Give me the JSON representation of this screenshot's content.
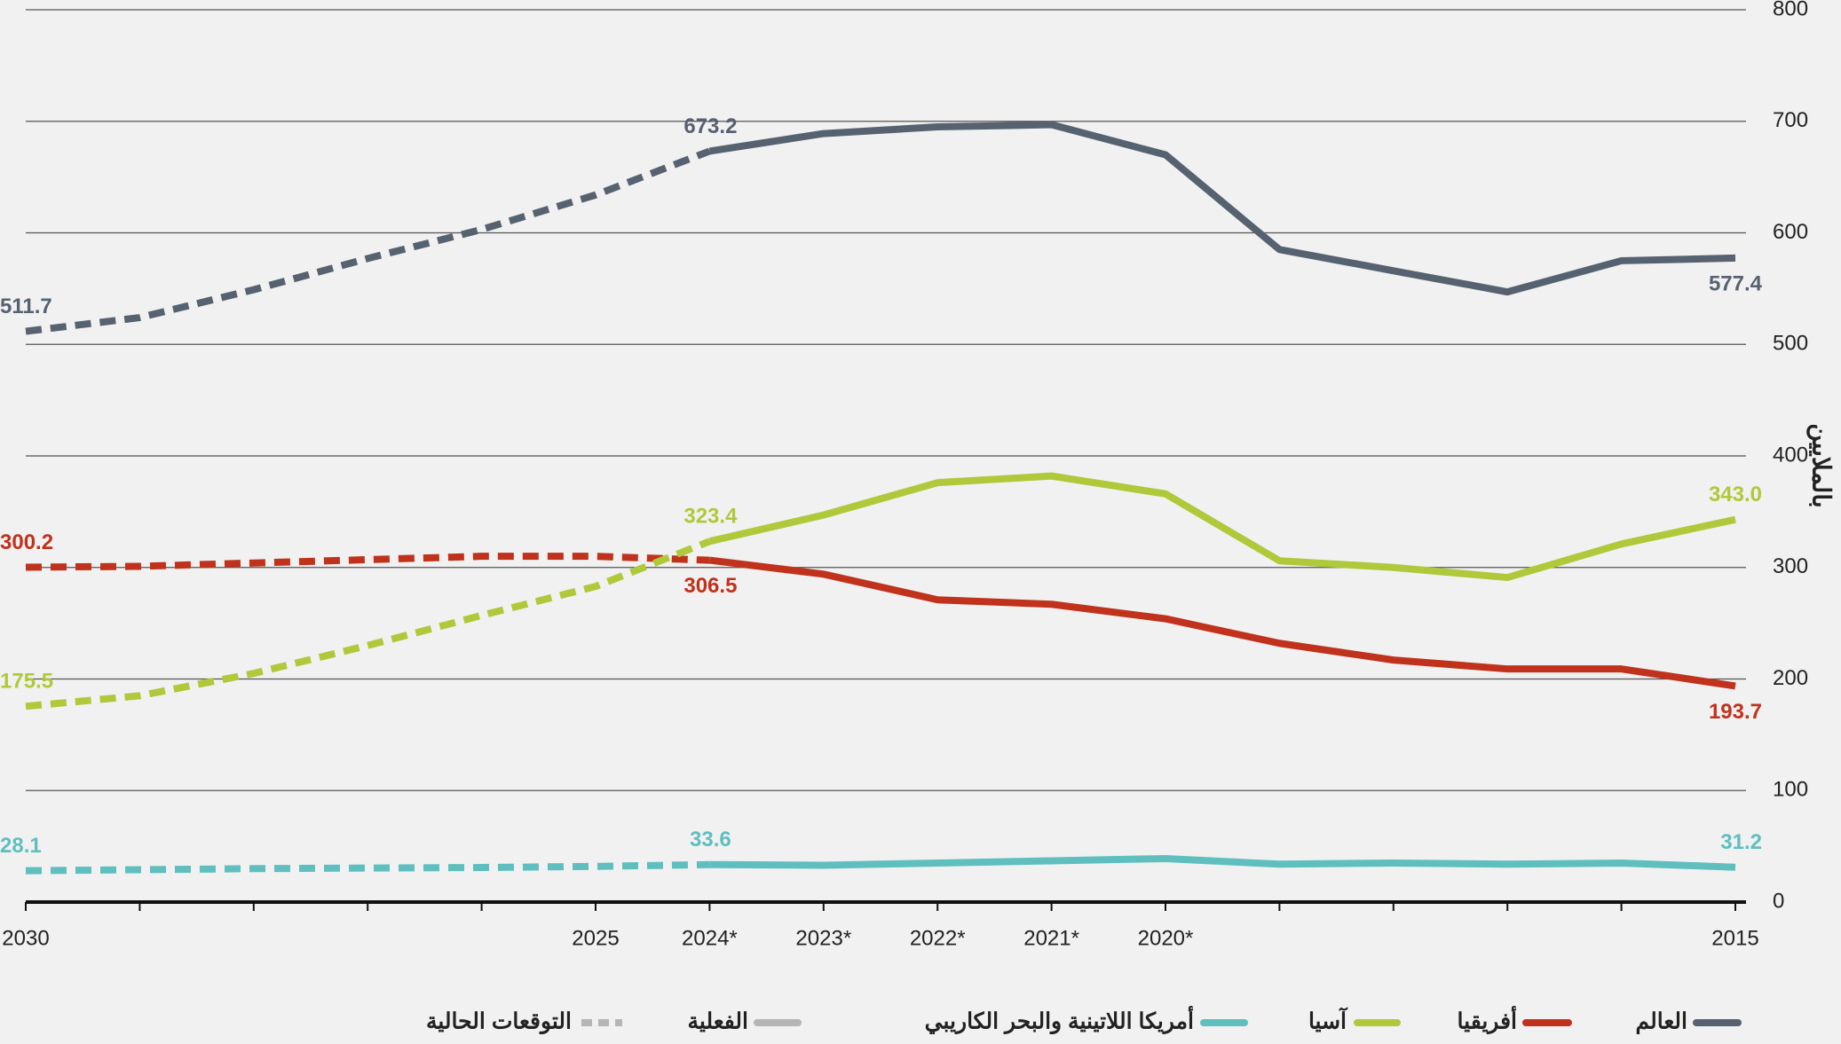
{
  "chart_data": {
    "type": "line",
    "y_label": "بالملايين",
    "categories": [
      "2030",
      null,
      null,
      null,
      null,
      "2025",
      "2024*",
      "2023*",
      "2022*",
      "2021*",
      "2020*",
      null,
      null,
      null,
      null,
      "2015"
    ],
    "projected": [
      true,
      true,
      true,
      true,
      true,
      true,
      true,
      false,
      false,
      false,
      false,
      false,
      false,
      false,
      false,
      false
    ],
    "series": [
      {
        "name": "العالم",
        "color": "#566270",
        "values": [
          511.7,
          524,
          549,
          577,
          603,
          634,
          673.2,
          689,
          695,
          697,
          670,
          585,
          566,
          547,
          575,
          577.4
        ],
        "value_labels": [
          "511.7",
          null,
          null,
          null,
          null,
          null,
          "673.2",
          null,
          null,
          null,
          null,
          null,
          null,
          null,
          null,
          "577.4"
        ]
      },
      {
        "name": "أفريقيا",
        "color": "#c0321c",
        "values": [
          300.2,
          301,
          304,
          307,
          310,
          310,
          306.5,
          294,
          271,
          267,
          254,
          232,
          217,
          209,
          209,
          193.7
        ],
        "value_labels": [
          "300.2",
          null,
          null,
          null,
          null,
          null,
          "306.5",
          null,
          null,
          null,
          null,
          null,
          null,
          null,
          null,
          "193.7"
        ]
      },
      {
        "name": "آسيا",
        "color": "#afc93a",
        "values": [
          175.5,
          185,
          205,
          230,
          257,
          283,
          323.4,
          347,
          376,
          382,
          366,
          306,
          300,
          291,
          321,
          343.0
        ],
        "value_labels": [
          "175.5",
          null,
          null,
          null,
          null,
          null,
          "323.4",
          null,
          null,
          null,
          null,
          null,
          null,
          null,
          null,
          "343.0"
        ]
      },
      {
        "name": "أمريكا اللاتينية والبحر الكاريبي",
        "color": "#5fbfbf",
        "values": [
          28.1,
          29,
          30,
          30.5,
          31,
          32,
          33.6,
          33,
          35,
          37,
          39,
          34,
          35,
          34,
          35,
          31.2
        ],
        "value_labels": [
          "28.1",
          null,
          null,
          null,
          null,
          null,
          "33.6",
          null,
          null,
          null,
          null,
          null,
          null,
          null,
          null,
          "31.2"
        ]
      }
    ],
    "line_styles": [
      {
        "name": "الفعلية",
        "dash": false,
        "color": "#b5b5b5"
      },
      {
        "name": "التوقعات الحالية",
        "dash": true,
        "color": "#b5b5b5"
      }
    ],
    "ylim": [
      0,
      800
    ],
    "yticks": [
      0,
      100,
      200,
      300,
      400,
      500,
      600,
      700,
      800
    ],
    "grid": true,
    "y_axis_side": "right"
  }
}
